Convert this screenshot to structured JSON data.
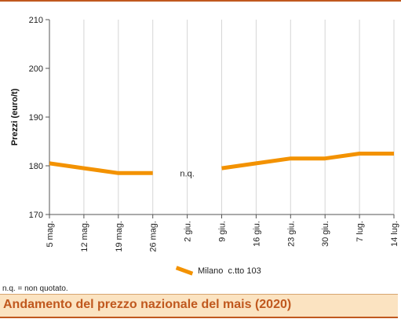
{
  "chart_data": {
    "type": "line",
    "title": "Andamento del prezzo nazionale del mais (2020)",
    "ylabel": "Prezzi (euro/t)",
    "xlabel": "",
    "ylim": [
      170,
      210
    ],
    "yticks": [
      170,
      180,
      190,
      200,
      210
    ],
    "categories": [
      "5 mag.",
      "12 mag.",
      "19 mag.",
      "26 mag.",
      "2 giu.",
      "9 giu.",
      "16 giu.",
      "23 giu.",
      "30 giu.",
      "7 lug.",
      "14 lug."
    ],
    "series": [
      {
        "name": "Milano  c.tto 103",
        "color": "#f39200",
        "values": [
          180.5,
          179.5,
          178.5,
          178.5,
          null,
          179.5,
          180.5,
          181.5,
          181.5,
          182.5,
          182.5
        ]
      }
    ],
    "annotations": [
      {
        "text": "n.q.",
        "category_index": 4,
        "y": 178.5
      }
    ],
    "grid": "vertical",
    "legend_position": "bottom"
  },
  "footnote": "n.q. = non quotato."
}
